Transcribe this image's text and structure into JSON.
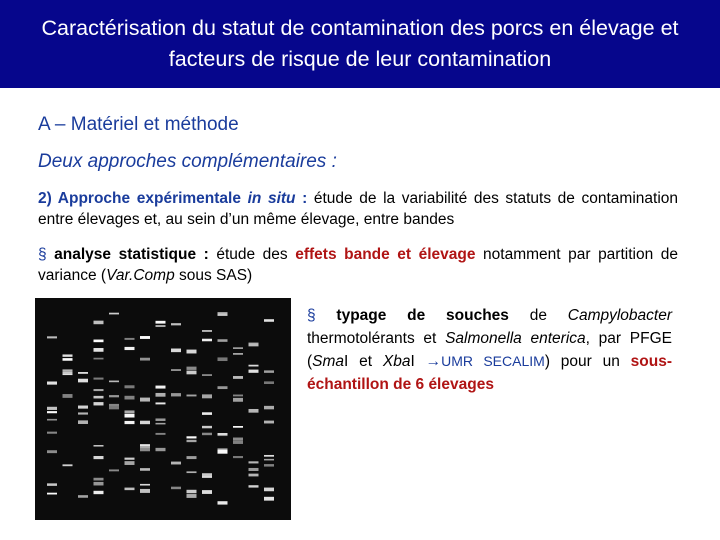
{
  "header": {
    "title": "Caractérisation du statut de contamination des porcs en élevage et facteurs de risque de leur contamination"
  },
  "section": {
    "heading": "A – Matériel et méthode",
    "subheading": "Deux approches complémentaires :"
  },
  "paragraphs": [
    [
      "2) Approche expérimentale ",
      "in situ",
      " :",
      " étude de la variabilité des statuts de contamination entre élevages et, au sein d’un même élevage, entre bandes"
    ],
    [
      "§",
      " analyse statistique :",
      " étude des ",
      "effets bande et élevage",
      " notamment par partition de variance (",
      "Var.Comp",
      " sous SAS)"
    ],
    [
      "§",
      " typage de souches",
      " de ",
      "Campylobacter",
      " thermotolérants et ",
      "Salmonella enterica",
      ", par PFGE (",
      "Sma",
      "I et ",
      "Xba",
      "I ",
      "→",
      "UMR SECALIM",
      ") pour un ",
      "sous-échantillon de 6 élevages"
    ]
  ]
}
